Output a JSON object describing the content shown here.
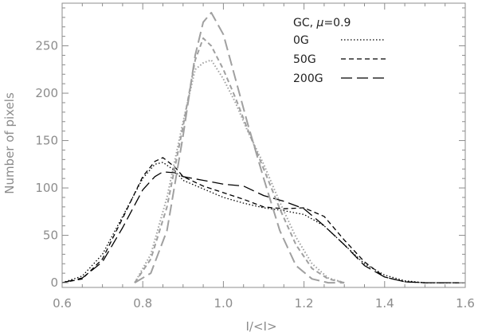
{
  "chart_data": {
    "type": "line",
    "title": "",
    "xlabel": "I/<I>",
    "ylabel": "Number of pixels",
    "xlim": [
      0.6,
      1.6
    ],
    "ylim": [
      -5,
      295
    ],
    "xticks": [
      "0.6",
      "0.8",
      "1.0",
      "1.2",
      "1.4",
      "1.6"
    ],
    "yticks": [
      "0",
      "50",
      "100",
      "150",
      "200",
      "250"
    ],
    "grid": false,
    "legend": {
      "position": "top-right",
      "title_prefix": "GC, ",
      "title_mu": "μ",
      "title_suffix": "=0.9",
      "entries": [
        {
          "label": "0G",
          "dash": "dotted"
        },
        {
          "label": "50G",
          "dash": "dashed"
        },
        {
          "label": "200G",
          "dash": "long-dashed"
        }
      ]
    },
    "colors": {
      "black": "#000000",
      "gray": "#a0a0a0",
      "axis": "#8c8c8c"
    },
    "series": [
      {
        "group": "black",
        "dash": "dotted",
        "x": [
          0.6,
          0.65,
          0.7,
          0.75,
          0.8,
          0.83,
          0.85,
          0.88,
          0.9,
          0.95,
          1.0,
          1.05,
          1.1,
          1.15,
          1.2,
          1.25,
          1.3,
          1.35,
          1.4,
          1.45,
          1.5,
          1.55,
          1.6
        ],
        "y": [
          0,
          7,
          30,
          70,
          110,
          125,
          127,
          118,
          108,
          99,
          90,
          84,
          79,
          76,
          72,
          60,
          40,
          20,
          8,
          2,
          0,
          0,
          0
        ]
      },
      {
        "group": "black",
        "dash": "dashed",
        "x": [
          0.6,
          0.65,
          0.7,
          0.75,
          0.8,
          0.83,
          0.85,
          0.88,
          0.9,
          0.95,
          1.0,
          1.05,
          1.1,
          1.15,
          1.2,
          1.25,
          1.3,
          1.35,
          1.4,
          1.45,
          1.5,
          1.55,
          1.6
        ],
        "y": [
          0,
          4,
          25,
          68,
          112,
          128,
          132,
          122,
          112,
          102,
          95,
          88,
          80,
          78,
          79,
          70,
          45,
          22,
          6,
          1,
          0,
          0,
          0
        ]
      },
      {
        "group": "black",
        "dash": "long-dashed",
        "x": [
          0.6,
          0.65,
          0.7,
          0.75,
          0.8,
          0.83,
          0.85,
          0.88,
          0.9,
          0.95,
          1.0,
          1.05,
          1.1,
          1.15,
          1.2,
          1.25,
          1.3,
          1.35,
          1.4,
          1.45,
          1.5,
          1.55,
          1.6
        ],
        "y": [
          0,
          5,
          22,
          58,
          98,
          112,
          117,
          116,
          112,
          108,
          104,
          102,
          92,
          86,
          78,
          60,
          40,
          18,
          6,
          1,
          0,
          0,
          0
        ]
      },
      {
        "group": "gray",
        "dash": "dotted",
        "x": [
          0.78,
          0.82,
          0.86,
          0.9,
          0.93,
          0.95,
          0.97,
          1.0,
          1.03,
          1.06,
          1.1,
          1.14,
          1.18,
          1.22,
          1.26,
          1.3
        ],
        "y": [
          0,
          30,
          90,
          170,
          225,
          232,
          235,
          215,
          190,
          160,
          125,
          85,
          48,
          20,
          5,
          0
        ]
      },
      {
        "group": "gray",
        "dash": "dashed",
        "x": [
          0.78,
          0.82,
          0.86,
          0.9,
          0.93,
          0.95,
          0.97,
          1.0,
          1.03,
          1.06,
          1.1,
          1.14,
          1.18,
          1.22,
          1.26,
          1.3
        ],
        "y": [
          0,
          25,
          80,
          165,
          235,
          258,
          250,
          225,
          195,
          162,
          120,
          78,
          40,
          15,
          4,
          0
        ]
      },
      {
        "group": "gray",
        "dash": "long-dashed",
        "x": [
          0.78,
          0.82,
          0.86,
          0.9,
          0.93,
          0.95,
          0.97,
          1.0,
          1.03,
          1.06,
          1.1,
          1.14,
          1.18,
          1.22,
          1.26,
          1.3
        ],
        "y": [
          0,
          10,
          55,
          155,
          240,
          275,
          285,
          262,
          215,
          168,
          110,
          55,
          18,
          4,
          0,
          0
        ]
      }
    ]
  }
}
